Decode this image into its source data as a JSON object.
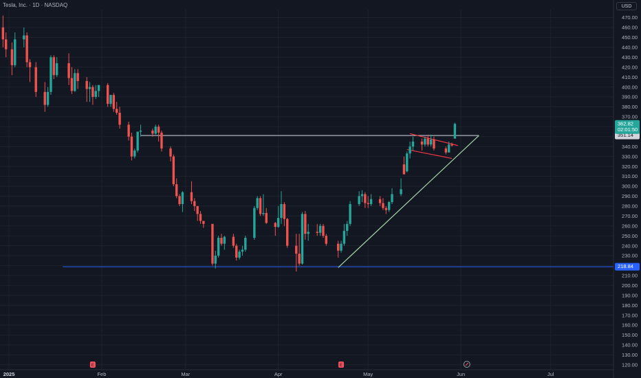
{
  "header": {
    "title": "Tesla, Inc. · 1D · NASDAQ",
    "currency": "USD"
  },
  "colors": {
    "background": "#131722",
    "up": "#26a69a",
    "down": "#ef5350",
    "grid": "#1e222d",
    "support_line": "#2962ff",
    "resistance_line": "#d1d4dc",
    "trend_line": "#a5d6a7",
    "flag_line": "#f23645",
    "axis_text": "#b2b5be"
  },
  "chart_data": {
    "type": "candlestick",
    "symbol": "TSLA",
    "interval": "1D",
    "exchange": "NASDAQ",
    "y_ticks": [
      120,
      130,
      140,
      150,
      160,
      170,
      180,
      190,
      200,
      210,
      220,
      230,
      240,
      250,
      260,
      270,
      280,
      290,
      300,
      310,
      320,
      330,
      340,
      350,
      360,
      370,
      380,
      390,
      400,
      410,
      420,
      430,
      440,
      450,
      460,
      470
    ],
    "y_tick_labels": [
      "120.00",
      "130.00",
      "140.00",
      "150.00",
      "160.00",
      "170.00",
      "180.00",
      "190.00",
      "200.00",
      "210.00",
      "220.00",
      "230.00",
      "240.00",
      "250.00",
      "260.00",
      "270.00",
      "280.00",
      "290.00",
      "300.00",
      "310.00",
      "320.00",
      "330.00",
      "340.00",
      "350.00",
      "360.00",
      "370.00",
      "380.00",
      "390.00",
      "400.00",
      "410.00",
      "420.00",
      "430.00",
      "440.00",
      "450.00",
      "460.00",
      "470.00"
    ],
    "ylim": [
      115,
      478
    ],
    "x_ticks": [
      {
        "label": "2025",
        "date": "2025-01-01",
        "bold": true
      },
      {
        "label": "Feb",
        "date": "2025-02-01"
      },
      {
        "label": "Mar",
        "date": "2025-03-01"
      },
      {
        "label": "Apr",
        "date": "2025-04-01"
      },
      {
        "label": "May",
        "date": "2025-05-01"
      },
      {
        "label": "Jun",
        "date": "2025-06-01"
      },
      {
        "label": "Jul",
        "date": "2025-07-01"
      }
    ],
    "xlim": [
      "2024-12-29",
      "2025-07-22"
    ],
    "candles": [
      {
        "d": "2024-12-30",
        "o": 460,
        "h": 472,
        "l": 440,
        "c": 448
      },
      {
        "d": "2024-12-31",
        "o": 448,
        "h": 455,
        "l": 430,
        "c": 438
      },
      {
        "d": "2025-01-02",
        "o": 438,
        "h": 445,
        "l": 412,
        "c": 422
      },
      {
        "d": "2025-01-03",
        "o": 422,
        "h": 455,
        "l": 420,
        "c": 448
      },
      {
        "d": "2025-01-06",
        "o": 448,
        "h": 460,
        "l": 440,
        "c": 452
      },
      {
        "d": "2025-01-07",
        "o": 452,
        "h": 455,
        "l": 420,
        "c": 425
      },
      {
        "d": "2025-01-08",
        "o": 425,
        "h": 428,
        "l": 405,
        "c": 420
      },
      {
        "d": "2025-01-10",
        "o": 420,
        "h": 425,
        "l": 390,
        "c": 395
      },
      {
        "d": "2025-01-13",
        "o": 395,
        "h": 405,
        "l": 375,
        "c": 382
      },
      {
        "d": "2025-01-14",
        "o": 382,
        "h": 400,
        "l": 380,
        "c": 395
      },
      {
        "d": "2025-01-15",
        "o": 395,
        "h": 432,
        "l": 392,
        "c": 430
      },
      {
        "d": "2025-01-16",
        "o": 430,
        "h": 432,
        "l": 408,
        "c": 412
      },
      {
        "d": "2025-01-17",
        "o": 412,
        "h": 430,
        "l": 410,
        "c": 424
      },
      {
        "d": "2025-01-21",
        "o": 424,
        "h": 434,
        "l": 402,
        "c": 409
      },
      {
        "d": "2025-01-22",
        "o": 409,
        "h": 420,
        "l": 393,
        "c": 396
      },
      {
        "d": "2025-01-23",
        "o": 396,
        "h": 418,
        "l": 395,
        "c": 414
      },
      {
        "d": "2025-01-24",
        "o": 414,
        "h": 418,
        "l": 398,
        "c": 406
      },
      {
        "d": "2025-01-27",
        "o": 406,
        "h": 410,
        "l": 385,
        "c": 398
      },
      {
        "d": "2025-01-28",
        "o": 398,
        "h": 405,
        "l": 385,
        "c": 400
      },
      {
        "d": "2025-01-29",
        "o": 400,
        "h": 402,
        "l": 382,
        "c": 390
      },
      {
        "d": "2025-01-30",
        "o": 390,
        "h": 402,
        "l": 388,
        "c": 396
      },
      {
        "d": "2025-01-31",
        "o": 396,
        "h": 402,
        "l": 390,
        "c": 402
      },
      {
        "d": "2025-02-03",
        "o": 402,
        "h": 404,
        "l": 380,
        "c": 383
      },
      {
        "d": "2025-02-04",
        "o": 383,
        "h": 392,
        "l": 380,
        "c": 392
      },
      {
        "d": "2025-02-05",
        "o": 392,
        "h": 394,
        "l": 375,
        "c": 378
      },
      {
        "d": "2025-02-06",
        "o": 378,
        "h": 385,
        "l": 372,
        "c": 374
      },
      {
        "d": "2025-02-07",
        "o": 374,
        "h": 380,
        "l": 358,
        "c": 362
      },
      {
        "d": "2025-02-10",
        "o": 362,
        "h": 365,
        "l": 346,
        "c": 350
      },
      {
        "d": "2025-02-11",
        "o": 350,
        "h": 354,
        "l": 326,
        "c": 330
      },
      {
        "d": "2025-02-12",
        "o": 330,
        "h": 338,
        "l": 328,
        "c": 336
      },
      {
        "d": "2025-02-13",
        "o": 336,
        "h": 355,
        "l": 334,
        "c": 355
      },
      {
        "d": "2025-02-14",
        "o": 355,
        "h": 362,
        "l": 350,
        "c": 356
      },
      {
        "d": "2025-02-18",
        "o": 356,
        "h": 358,
        "l": 350,
        "c": 353
      },
      {
        "d": "2025-02-19",
        "o": 353,
        "h": 362,
        "l": 352,
        "c": 360
      },
      {
        "d": "2025-02-20",
        "o": 360,
        "h": 362,
        "l": 345,
        "c": 354
      },
      {
        "d": "2025-02-21",
        "o": 354,
        "h": 356,
        "l": 335,
        "c": 338
      },
      {
        "d": "2025-02-24",
        "o": 338,
        "h": 340,
        "l": 325,
        "c": 330
      },
      {
        "d": "2025-02-25",
        "o": 330,
        "h": 332,
        "l": 300,
        "c": 302
      },
      {
        "d": "2025-02-26",
        "o": 302,
        "h": 308,
        "l": 288,
        "c": 290
      },
      {
        "d": "2025-02-27",
        "o": 290,
        "h": 292,
        "l": 280,
        "c": 282
      },
      {
        "d": "2025-02-28",
        "o": 282,
        "h": 295,
        "l": 274,
        "c": 294
      },
      {
        "d": "2025-03-03",
        "o": 294,
        "h": 305,
        "l": 282,
        "c": 285
      },
      {
        "d": "2025-03-04",
        "o": 285,
        "h": 288,
        "l": 275,
        "c": 280
      },
      {
        "d": "2025-03-05",
        "o": 280,
        "h": 280,
        "l": 265,
        "c": 272
      },
      {
        "d": "2025-03-06",
        "o": 272,
        "h": 275,
        "l": 262,
        "c": 265
      },
      {
        "d": "2025-03-07",
        "o": 265,
        "h": 265,
        "l": 258,
        "c": 262
      },
      {
        "d": "2025-03-10",
        "o": 262,
        "h": 262,
        "l": 220,
        "c": 222
      },
      {
        "d": "2025-03-11",
        "o": 222,
        "h": 235,
        "l": 217,
        "c": 230
      },
      {
        "d": "2025-03-12",
        "o": 230,
        "h": 250,
        "l": 228,
        "c": 248
      },
      {
        "d": "2025-03-13",
        "o": 248,
        "h": 252,
        "l": 240,
        "c": 242
      },
      {
        "d": "2025-03-14",
        "o": 242,
        "h": 250,
        "l": 236,
        "c": 249
      },
      {
        "d": "2025-03-17",
        "o": 249,
        "h": 252,
        "l": 238,
        "c": 240
      },
      {
        "d": "2025-03-18",
        "o": 240,
        "h": 242,
        "l": 225,
        "c": 228
      },
      {
        "d": "2025-03-19",
        "o": 228,
        "h": 236,
        "l": 226,
        "c": 234
      },
      {
        "d": "2025-03-20",
        "o": 234,
        "h": 240,
        "l": 230,
        "c": 236
      },
      {
        "d": "2025-03-21",
        "o": 236,
        "h": 250,
        "l": 234,
        "c": 248
      },
      {
        "d": "2025-03-24",
        "o": 248,
        "h": 280,
        "l": 246,
        "c": 278
      },
      {
        "d": "2025-03-25",
        "o": 278,
        "h": 290,
        "l": 276,
        "c": 288
      },
      {
        "d": "2025-03-26",
        "o": 288,
        "h": 290,
        "l": 270,
        "c": 272
      },
      {
        "d": "2025-03-27",
        "o": 272,
        "h": 292,
        "l": 270,
        "c": 273
      },
      {
        "d": "2025-03-28",
        "o": 273,
        "h": 278,
        "l": 262,
        "c": 263
      },
      {
        "d": "2025-03-31",
        "o": 263,
        "h": 264,
        "l": 250,
        "c": 259
      },
      {
        "d": "2025-04-01",
        "o": 259,
        "h": 280,
        "l": 258,
        "c": 268
      },
      {
        "d": "2025-04-02",
        "o": 268,
        "h": 295,
        "l": 262,
        "c": 282
      },
      {
        "d": "2025-04-03",
        "o": 282,
        "h": 284,
        "l": 260,
        "c": 267
      },
      {
        "d": "2025-04-04",
        "o": 267,
        "h": 268,
        "l": 238,
        "c": 240
      },
      {
        "d": "2025-04-07",
        "o": 240,
        "h": 252,
        "l": 214,
        "c": 232
      },
      {
        "d": "2025-04-08",
        "o": 232,
        "h": 252,
        "l": 220,
        "c": 222
      },
      {
        "d": "2025-04-09",
        "o": 222,
        "h": 274,
        "l": 221,
        "c": 272
      },
      {
        "d": "2025-04-10",
        "o": 272,
        "h": 275,
        "l": 246,
        "c": 252
      },
      {
        "d": "2025-04-11",
        "o": 252,
        "h": 262,
        "l": 245,
        "c": 254
      },
      {
        "d": "2025-04-14",
        "o": 254,
        "h": 262,
        "l": 250,
        "c": 253
      },
      {
        "d": "2025-04-15",
        "o": 253,
        "h": 262,
        "l": 250,
        "c": 260
      },
      {
        "d": "2025-04-16",
        "o": 260,
        "h": 262,
        "l": 248,
        "c": 250
      },
      {
        "d": "2025-04-17",
        "o": 250,
        "h": 252,
        "l": 240,
        "c": 242
      },
      {
        "d": "2025-04-21",
        "o": 242,
        "h": 245,
        "l": 228,
        "c": 235
      },
      {
        "d": "2025-04-22",
        "o": 235,
        "h": 245,
        "l": 233,
        "c": 242
      },
      {
        "d": "2025-04-23",
        "o": 242,
        "h": 262,
        "l": 240,
        "c": 255
      },
      {
        "d": "2025-04-24",
        "o": 255,
        "h": 265,
        "l": 250,
        "c": 262
      },
      {
        "d": "2025-04-25",
        "o": 262,
        "h": 285,
        "l": 260,
        "c": 282
      },
      {
        "d": "2025-04-28",
        "o": 282,
        "h": 295,
        "l": 280,
        "c": 290
      },
      {
        "d": "2025-04-29",
        "o": 290,
        "h": 296,
        "l": 284,
        "c": 292
      },
      {
        "d": "2025-04-30",
        "o": 292,
        "h": 294,
        "l": 278,
        "c": 283
      },
      {
        "d": "2025-05-01",
        "o": 283,
        "h": 290,
        "l": 278,
        "c": 282
      },
      {
        "d": "2025-05-02",
        "o": 282,
        "h": 292,
        "l": 280,
        "c": 287
      },
      {
        "d": "2025-05-05",
        "o": 287,
        "h": 290,
        "l": 280,
        "c": 283
      },
      {
        "d": "2025-05-06",
        "o": 283,
        "h": 288,
        "l": 276,
        "c": 278
      },
      {
        "d": "2025-05-07",
        "o": 278,
        "h": 280,
        "l": 272,
        "c": 276
      },
      {
        "d": "2025-05-08",
        "o": 276,
        "h": 285,
        "l": 274,
        "c": 284
      },
      {
        "d": "2025-05-09",
        "o": 284,
        "h": 298,
        "l": 282,
        "c": 292
      },
      {
        "d": "2025-05-12",
        "o": 292,
        "h": 308,
        "l": 290,
        "c": 297
      },
      {
        "d": "2025-05-13",
        "o": 322,
        "h": 330,
        "l": 312,
        "c": 312
      },
      {
        "d": "2025-05-14",
        "o": 315,
        "h": 335,
        "l": 314,
        "c": 333
      },
      {
        "d": "2025-05-15",
        "o": 333,
        "h": 345,
        "l": 328,
        "c": 340
      },
      {
        "d": "2025-05-16",
        "o": 340,
        "h": 350,
        "l": 336,
        "c": 345
      },
      {
        "d": "2025-05-19",
        "o": 345,
        "h": 348,
        "l": 336,
        "c": 342
      },
      {
        "d": "2025-05-20",
        "o": 342,
        "h": 350,
        "l": 340,
        "c": 348
      },
      {
        "d": "2025-05-21",
        "o": 348,
        "h": 352,
        "l": 340,
        "c": 342
      },
      {
        "d": "2025-05-22",
        "o": 342,
        "h": 352,
        "l": 340,
        "c": 347
      },
      {
        "d": "2025-05-23",
        "o": 347,
        "h": 350,
        "l": 336,
        "c": 338
      },
      {
        "d": "2025-05-27",
        "o": 338,
        "h": 340,
        "l": 332,
        "c": 334
      },
      {
        "d": "2025-05-28",
        "o": 334,
        "h": 345,
        "l": 334,
        "c": 342
      },
      {
        "d": "2025-05-29",
        "o": 342,
        "h": 344,
        "l": 340,
        "c": 341
      },
      {
        "d": "2025-05-30",
        "o": 348,
        "h": 364,
        "l": 348,
        "c": 362.82
      }
    ],
    "horizontal_lines": [
      {
        "name": "resistance",
        "value": 351.14,
        "label": "351.14",
        "from": "2025-02-14",
        "to": "2025-06-07"
      },
      {
        "name": "support",
        "value": 218.84,
        "label": "218.84",
        "from": "2025-01-19",
        "to": "2025-07-22"
      }
    ],
    "trend_lines": [
      {
        "name": "rising-trendline",
        "from": {
          "d": "2025-04-21",
          "v": 218
        },
        "to": {
          "d": "2025-06-07",
          "v": 351
        }
      },
      {
        "name": "flag-upper",
        "from": {
          "d": "2025-05-15",
          "v": 353
        },
        "to": {
          "d": "2025-05-31",
          "v": 341
        }
      },
      {
        "name": "flag-lower",
        "from": {
          "d": "2025-05-14",
          "v": 337
        },
        "to": {
          "d": "2025-05-29",
          "v": 328
        }
      }
    ],
    "price_label": {
      "value": 362.82,
      "label": "362.82",
      "countdown": "02:01:50"
    },
    "events": [
      {
        "d": "2025-01-29",
        "label": "E"
      },
      {
        "d": "2025-04-22",
        "label": "E"
      }
    ],
    "split_event": {
      "d": "2025-06-03"
    }
  }
}
